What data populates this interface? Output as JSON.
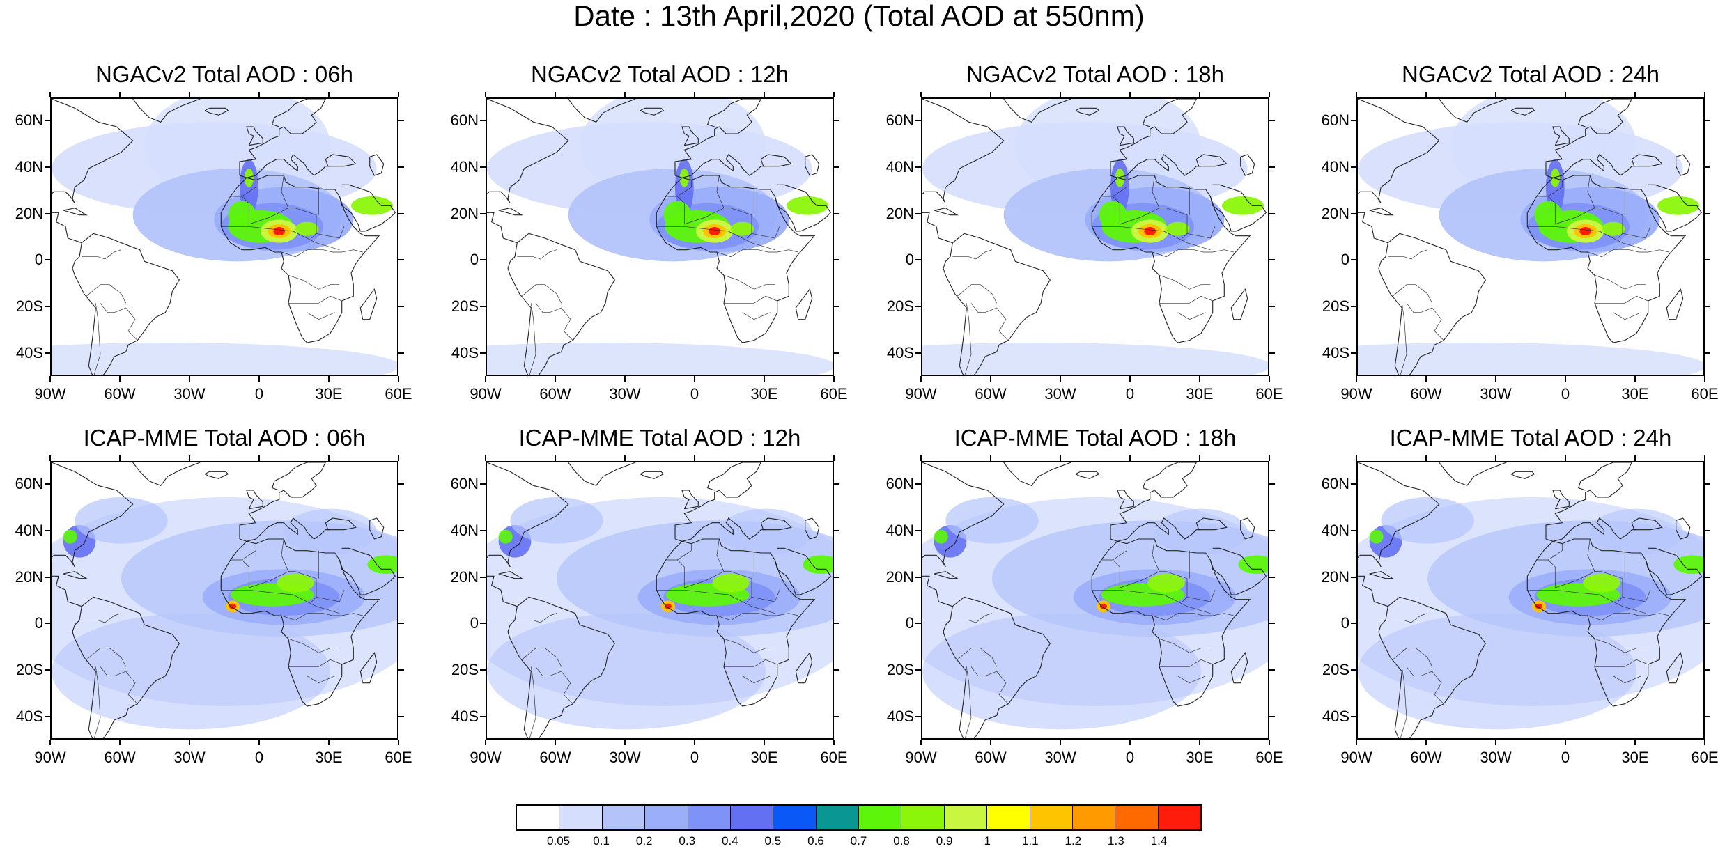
{
  "title": "Date : 13th April,2020 (Total AOD at 550nm)",
  "panels": [
    {
      "title": "NGACv2 Total AOD : 06h",
      "model": "NGACv2",
      "hour": "06h"
    },
    {
      "title": "NGACv2 Total AOD : 12h",
      "model": "NGACv2",
      "hour": "12h"
    },
    {
      "title": "NGACv2 Total AOD : 18h",
      "model": "NGACv2",
      "hour": "18h"
    },
    {
      "title": "NGACv2 Total AOD : 24h",
      "model": "NGACv2",
      "hour": "24h"
    },
    {
      "title": "ICAP-MME Total AOD : 06h",
      "model": "ICAP-MME",
      "hour": "06h"
    },
    {
      "title": "ICAP-MME Total AOD : 12h",
      "model": "ICAP-MME",
      "hour": "12h"
    },
    {
      "title": "ICAP-MME Total AOD : 18h",
      "model": "ICAP-MME",
      "hour": "18h"
    },
    {
      "title": "ICAP-MME Total AOD : 24h",
      "model": "ICAP-MME",
      "hour": "24h"
    }
  ],
  "axes": {
    "lat_labels": [
      "60N",
      "40N",
      "20N",
      "0",
      "20S",
      "40S"
    ],
    "lat_values": [
      60,
      40,
      20,
      0,
      -20,
      -40
    ],
    "lon_labels": [
      "90W",
      "60W",
      "30W",
      "0",
      "30E",
      "60E"
    ],
    "lon_values": [
      -90,
      -60,
      -30,
      0,
      30,
      60
    ],
    "lat_range": [
      -50,
      70
    ],
    "lon_range": [
      -90,
      60
    ]
  },
  "legend": {
    "labels": [
      "0.05",
      "0.1",
      "0.2",
      "0.3",
      "0.4",
      "0.5",
      "0.6",
      "0.7",
      "0.8",
      "0.9",
      "1",
      "1.1",
      "1.2",
      "1.3",
      "1.4"
    ],
    "colors": [
      "#ffffff",
      "#d5defd",
      "#b4c4fb",
      "#9aaefa",
      "#7f92f8",
      "#6470f2",
      "#0a59f6",
      "#0a9693",
      "#5df60a",
      "#8cf60a",
      "#c8f641",
      "#ffff00",
      "#ffc400",
      "#ff9a00",
      "#ff6a00",
      "#ff1c0a"
    ]
  }
}
